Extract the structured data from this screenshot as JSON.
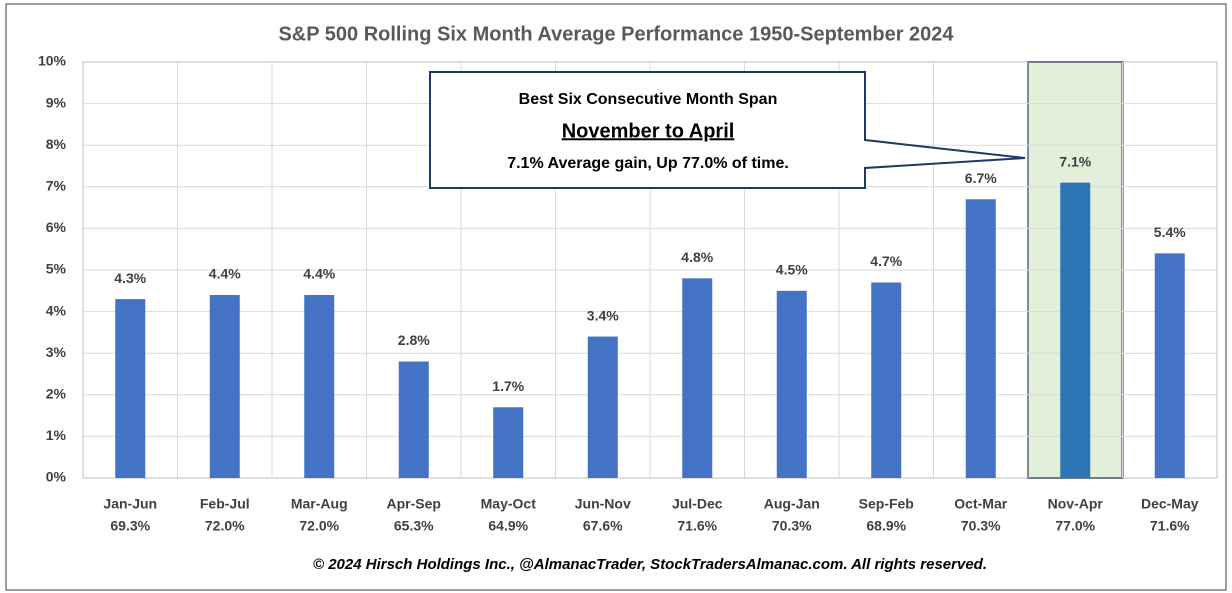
{
  "chart_data": {
    "type": "bar",
    "title": "S&P 500 Rolling Six Month Average Performance 1950-September 2024",
    "categories": [
      "Jan-Jun",
      "Feb-Jul",
      "Mar-Aug",
      "Apr-Sep",
      "May-Oct",
      "Jun-Nov",
      "Jul-Dec",
      "Aug-Jan",
      "Sep-Feb",
      "Oct-Mar",
      "Nov-Apr",
      "Dec-May"
    ],
    "values": [
      4.3,
      4.4,
      4.4,
      2.8,
      1.7,
      3.4,
      4.8,
      4.5,
      4.7,
      6.7,
      7.1,
      5.4
    ],
    "value_labels": [
      "4.3%",
      "4.4%",
      "4.4%",
      "2.8%",
      "1.7%",
      "3.4%",
      "4.8%",
      "4.5%",
      "4.7%",
      "6.7%",
      "7.1%",
      "5.4%"
    ],
    "percent_up": {
      "values": [
        69.3,
        72.0,
        72.0,
        65.3,
        64.9,
        67.6,
        71.6,
        70.3,
        68.9,
        70.3,
        77.0,
        71.6
      ],
      "value_labels": [
        "69.3%",
        "72.0%",
        "72.0%",
        "65.3%",
        "64.9%",
        "67.6%",
        "71.6%",
        "70.3%",
        "68.9%",
        "70.3%",
        "77.0%",
        "71.6%"
      ]
    },
    "color": "#4472c4",
    "highlight_category": "Nov-Apr",
    "highlight_color": "#2e75b6",
    "highlight_fill": "#e2f0d9",
    "ylim": [
      0,
      10
    ],
    "yticks": [
      {
        "value": 0,
        "label": "0%"
      },
      {
        "value": 1,
        "label": "1%"
      },
      {
        "value": 2,
        "label": "2%"
      },
      {
        "value": 3,
        "label": "3%"
      },
      {
        "value": 4,
        "label": "4%"
      },
      {
        "value": 5,
        "label": "5%"
      },
      {
        "value": 6,
        "label": "6%"
      },
      {
        "value": 7,
        "label": "7%"
      },
      {
        "value": 8,
        "label": "8%"
      },
      {
        "value": 9,
        "label": "9%"
      },
      {
        "value": 10,
        "label": "10%"
      }
    ],
    "grid": true,
    "annotation": {
      "line1": "Best Six Consecutive Month Span",
      "line2": "November to April",
      "line3": "7.1% Average gain, Up 77.0% of time."
    },
    "footer": "© 2024 Hirsch Holdings Inc., @AlmanacTrader, StockTradersAlmanac.com. All rights reserved."
  }
}
